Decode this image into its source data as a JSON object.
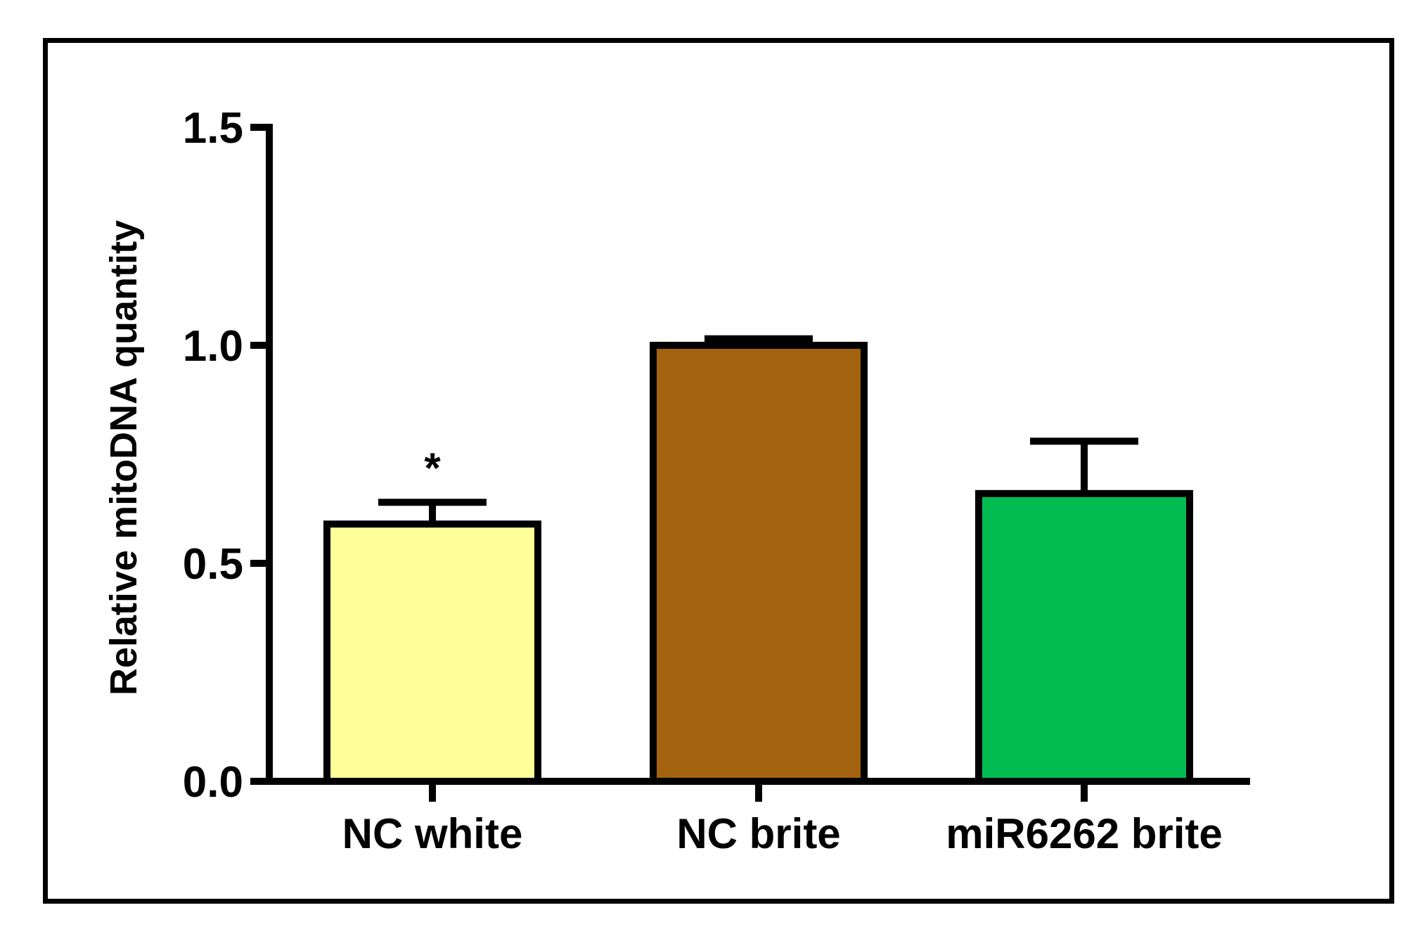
{
  "chart_data": {
    "type": "bar",
    "title": "",
    "xlabel": "",
    "ylabel": "Relative mitoDNA quantity",
    "ylim": [
      0,
      1.5
    ],
    "yticks": [
      0.0,
      0.5,
      1.0,
      1.5
    ],
    "ytick_labels": [
      "0.0",
      "0.5",
      "1.0",
      "1.5"
    ],
    "categories": [
      "NC white",
      "NC brite",
      "miR6262 brite"
    ],
    "values": [
      0.59,
      1.0,
      0.66
    ],
    "error_bars_upper": [
      0.05,
      0.015,
      0.12
    ],
    "colors": [
      "#FFFF99",
      "#A2620E",
      "#02BC52"
    ],
    "annotations": [
      {
        "category": "NC white",
        "text": "*"
      }
    ],
    "grid": false,
    "legend": null
  },
  "labels": {
    "ylabel": "Relative mitoDNA quantity",
    "yticks": [
      "0.0",
      "0.5",
      "1.0",
      "1.5"
    ],
    "categories": [
      "NC white",
      "NC brite",
      "miR6262 brite"
    ],
    "significance": "*"
  }
}
